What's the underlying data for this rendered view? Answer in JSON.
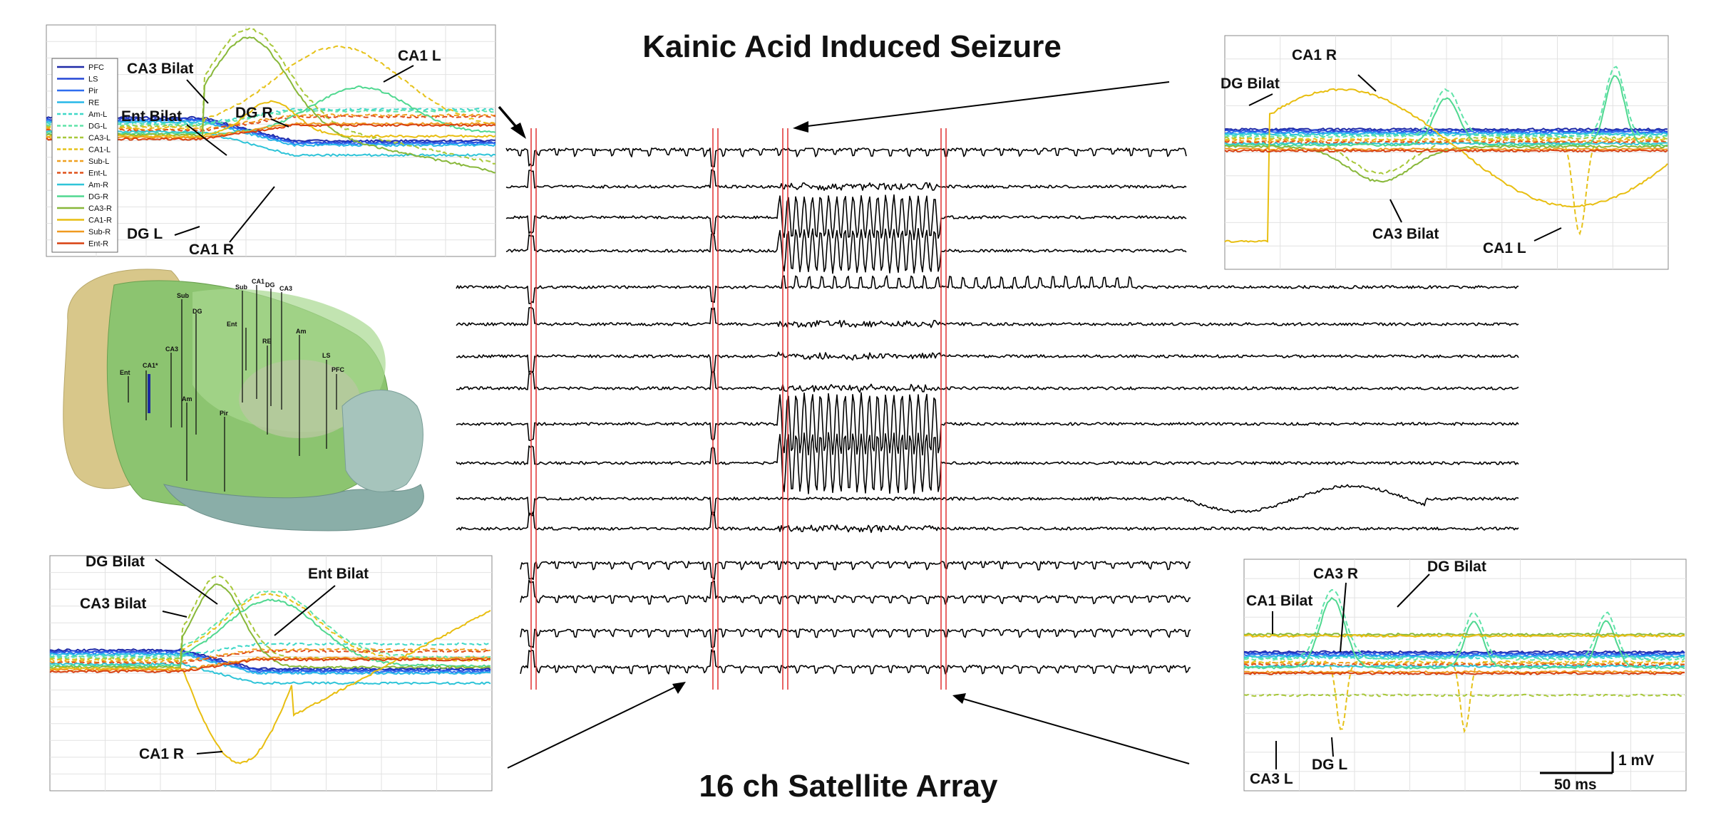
{
  "figure": {
    "title": "Kainic Acid Induced Seizure",
    "subtitle": "16 ch Satellite Array"
  },
  "legend": {
    "entries": [
      {
        "name": "PFC",
        "color": "#1f2aa8",
        "dash": false
      },
      {
        "name": "LS",
        "color": "#2547d6",
        "dash": false
      },
      {
        "name": "Pir",
        "color": "#2f6ef0",
        "dash": false
      },
      {
        "name": "RE",
        "color": "#27b8e8",
        "dash": false
      },
      {
        "name": "Am-L",
        "color": "#3fd8c8",
        "dash": true
      },
      {
        "name": "DG-L",
        "color": "#5fe3a8",
        "dash": true
      },
      {
        "name": "CA3-L",
        "color": "#a8c83a",
        "dash": true
      },
      {
        "name": "CA1-L",
        "color": "#e6c21a",
        "dash": true
      },
      {
        "name": "Sub-L",
        "color": "#f0a020",
        "dash": true
      },
      {
        "name": "Ent-L",
        "color": "#e0501a",
        "dash": true
      },
      {
        "name": "Am-R",
        "color": "#2fc4d8",
        "dash": false
      },
      {
        "name": "DG-R",
        "color": "#50d890",
        "dash": false
      },
      {
        "name": "CA3-R",
        "color": "#88b83a",
        "dash": false
      },
      {
        "name": "CA1-R",
        "color": "#e8be10",
        "dash": false
      },
      {
        "name": "Sub-R",
        "color": "#f09a20",
        "dash": false
      },
      {
        "name": "Ent-R",
        "color": "#d84010",
        "dash": false
      }
    ]
  },
  "panels": {
    "top_left": {
      "labels": [
        "CA3 Bilat",
        "Ent Bilat",
        "DG R",
        "CA1 L",
        "DG L",
        "CA1 R"
      ]
    },
    "top_right": {
      "labels": [
        "CA1 R",
        "DG Bilat",
        "CA3 Bilat",
        "CA1 L"
      ]
    },
    "bottom_left": {
      "labels": [
        "DG Bilat",
        "CA3 Bilat",
        "Ent Bilat",
        "CA1 R"
      ]
    },
    "bottom_right": {
      "labels": [
        "CA3 R",
        "DG Bilat",
        "CA1 Bilat",
        "CA3 L",
        "DG L"
      ],
      "scalebar": {
        "time": "50 ms",
        "amp": "1 mV"
      }
    }
  },
  "brain": {
    "regions": [
      "Sub",
      "DG",
      "CA3",
      "CA1*",
      "Ent",
      "Am",
      "Pir",
      "Sub",
      "CA1",
      "DG",
      "CA3",
      "Ent",
      "RE",
      "Am",
      "LS",
      "PFC"
    ]
  },
  "colors": {
    "event_marker": "#e03030",
    "trace": "#000000"
  }
}
